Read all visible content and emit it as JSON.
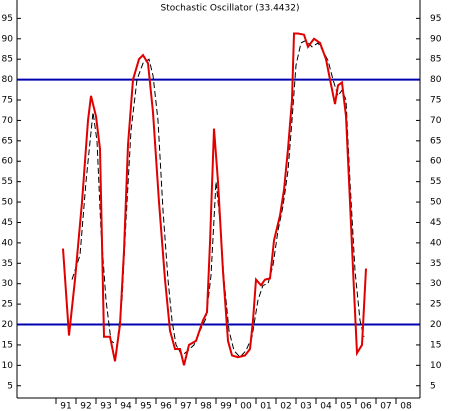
{
  "chart_data": {
    "type": "line",
    "title": "Stochastic Oscillator (33.4432)",
    "xlim": [
      1989.05,
      2009.2
    ],
    "ylim": [
      2,
      99.5
    ],
    "yticks": [
      5,
      10,
      15,
      20,
      25,
      30,
      35,
      40,
      45,
      50,
      55,
      60,
      65,
      70,
      75,
      80,
      85,
      90,
      95
    ],
    "xticks": [
      {
        "value": 1991,
        "label": "91"
      },
      {
        "value": 1992,
        "label": "92"
      },
      {
        "value": 1993,
        "label": "93"
      },
      {
        "value": 1994,
        "label": "94"
      },
      {
        "value": 1995,
        "label": "95"
      },
      {
        "value": 1996,
        "label": "96"
      },
      {
        "value": 1997,
        "label": "97"
      },
      {
        "value": 1998,
        "label": "98"
      },
      {
        "value": 1999,
        "label": "99"
      },
      {
        "value": 2000,
        "label": "00"
      },
      {
        "value": 2001,
        "label": "01"
      },
      {
        "value": 2002,
        "label": "02"
      },
      {
        "value": 2003,
        "label": "03"
      },
      {
        "value": 2004,
        "label": "04"
      },
      {
        "value": 2005,
        "label": "05"
      },
      {
        "value": 2006,
        "label": "06"
      },
      {
        "value": 2007,
        "label": "07"
      },
      {
        "value": 2008,
        "label": "08"
      }
    ],
    "hlines": [
      {
        "value": 80,
        "color": "#0000b0"
      },
      {
        "value": 20,
        "color": "#0000b0"
      }
    ],
    "series": [
      {
        "color": "#e00000",
        "dashed": false,
        "x": [
          1991.35,
          1991.65,
          1991.95,
          1992.3,
          1992.6,
          1992.75,
          1993.0,
          1993.2,
          1993.4,
          1993.7,
          1993.95,
          1994.2,
          1994.4,
          1994.6,
          1994.85,
          1995.15,
          1995.35,
          1995.6,
          1995.85,
          1996.15,
          1996.45,
          1996.7,
          1996.95,
          1997.2,
          1997.4,
          1997.65,
          1998.0,
          1998.35,
          1998.55,
          1998.7,
          1998.9,
          1999.1,
          1999.35,
          1999.6,
          1999.8,
          2000.1,
          2000.45,
          2000.7,
          2000.85,
          2001.0,
          2001.25,
          2001.45,
          2001.7,
          2001.9,
          2002.2,
          2002.4,
          2002.6,
          2002.8,
          2002.9,
          2003.1,
          2003.4,
          2003.6,
          2003.9,
          2004.2,
          2004.5,
          2004.7,
          2004.95,
          2005.1,
          2005.3,
          2005.5,
          2005.7,
          2005.9,
          2006.05,
          2006.3,
          2006.5
        ],
        "values": [
          38.6,
          17.3,
          31,
          50,
          70,
          76,
          71,
          63,
          17,
          17,
          11,
          20,
          38,
          64,
          80,
          85,
          86,
          84,
          72,
          50,
          31,
          18.5,
          14,
          14,
          10,
          15,
          16,
          21,
          23,
          40,
          68,
          55,
          33,
          16,
          12.4,
          12,
          12.4,
          14,
          21,
          31,
          29.6,
          31,
          31.3,
          40.6,
          46.7,
          53,
          63,
          75,
          91.3,
          91.3,
          91,
          88,
          90,
          89,
          85,
          80,
          74,
          78.6,
          79.3,
          71,
          50,
          28.3,
          13,
          15,
          33.7
        ]
      },
      {
        "color": "#000000",
        "dashed": true,
        "x": [
          1991.8,
          1992.2,
          1992.5,
          1992.85,
          1993.05,
          1993.25,
          1993.5,
          1993.75,
          1994.05,
          1994.3,
          1994.5,
          1994.75,
          1995.05,
          1995.35,
          1995.65,
          1995.85,
          1996.1,
          1996.35,
          1996.6,
          1996.8,
          1997.0,
          1997.3,
          1997.6,
          1997.9,
          1998.2,
          1998.5,
          1998.75,
          1999.0,
          1999.2,
          1999.4,
          1999.65,
          1999.9,
          2000.2,
          2000.5,
          2000.8,
          2001.1,
          2001.35,
          2001.6,
          2001.85,
          2002.1,
          2002.35,
          2002.6,
          2002.8,
          2003.0,
          2003.25,
          2003.5,
          2003.8,
          2004.1,
          2004.35,
          2004.6,
          2004.85,
          2005.1,
          2005.3,
          2005.5,
          2005.7,
          2005.95,
          2006.2,
          2006.4
        ],
        "values": [
          31,
          37,
          55,
          72,
          65,
          43,
          26,
          16,
          15,
          26,
          45.5,
          67.5,
          80,
          84,
          85,
          81,
          70,
          48,
          31,
          21,
          15,
          12.4,
          13.6,
          15,
          18.5,
          21.5,
          32,
          55,
          45.5,
          31,
          18.5,
          13.6,
          12,
          13.6,
          17,
          26,
          29.6,
          30,
          34.5,
          43,
          49,
          57.7,
          70,
          83.5,
          89,
          89.6,
          88,
          89,
          87,
          84.7,
          80,
          76,
          77.4,
          75,
          55,
          33.2,
          21,
          17
        ]
      }
    ]
  }
}
